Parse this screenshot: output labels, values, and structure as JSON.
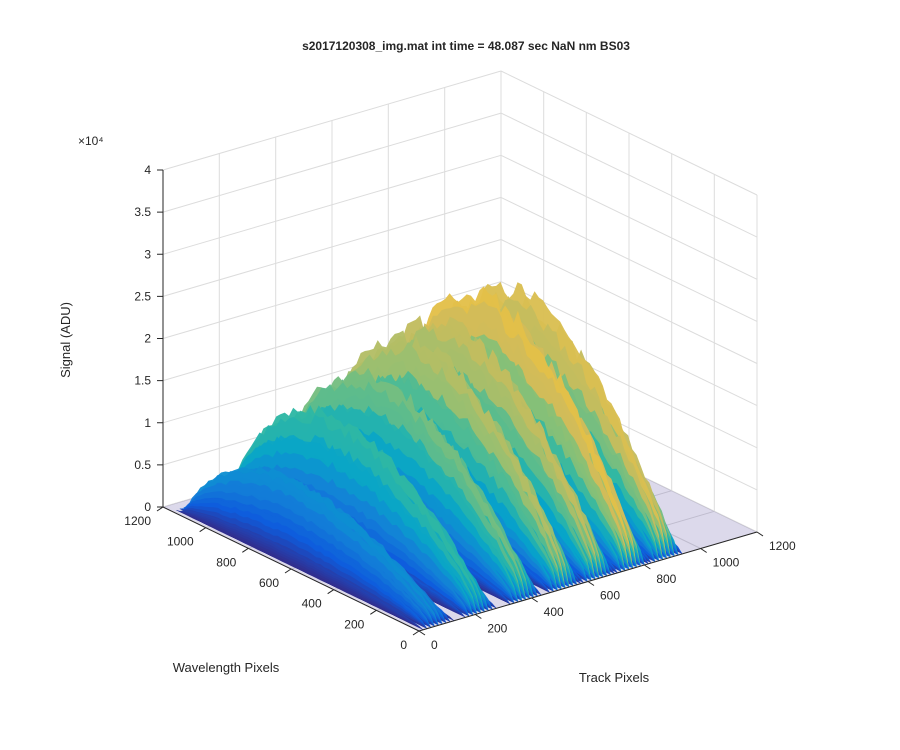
{
  "chart_data": {
    "type": "surface3d",
    "title": "s2017120308_img.mat int time = 48.087 sec  NaN nm BS03",
    "xlabel": "Track Pixels",
    "ylabel": "Wavelength Pixels",
    "zlabel": "Signal (ADU)",
    "z_multiplier_label": "×10⁴",
    "xlim": [
      0,
      1200
    ],
    "ylim": [
      0,
      1200
    ],
    "zlim": [
      0,
      40000
    ],
    "x_ticks": [
      "0",
      "200",
      "400",
      "600",
      "800",
      "1000",
      "1200"
    ],
    "y_ticks": [
      "0",
      "200",
      "400",
      "600",
      "800",
      "1000",
      "1200"
    ],
    "z_ticks": [
      "0",
      "0.5",
      "1",
      "1.5",
      "2",
      "2.5",
      "3",
      "3.5",
      "4"
    ],
    "grid": true,
    "colormap": "parula",
    "colors": [
      "#352a87",
      "#0f5cdd",
      "#1481d6",
      "#06a4ca",
      "#2eb7a4",
      "#87bf77",
      "#d1bb59",
      "#fec832",
      "#f9fb0e"
    ],
    "tracks": [
      {
        "x": 70,
        "peak_z": 12000
      },
      {
        "x": 220,
        "peak_z": 20000
      },
      {
        "x": 380,
        "peak_z": 24000
      },
      {
        "x": 520,
        "peak_z": 28000
      },
      {
        "x": 640,
        "peak_z": 29000
      },
      {
        "x": 760,
        "peak_z": 32000
      },
      {
        "x": 880,
        "peak_z": 31000
      }
    ]
  }
}
